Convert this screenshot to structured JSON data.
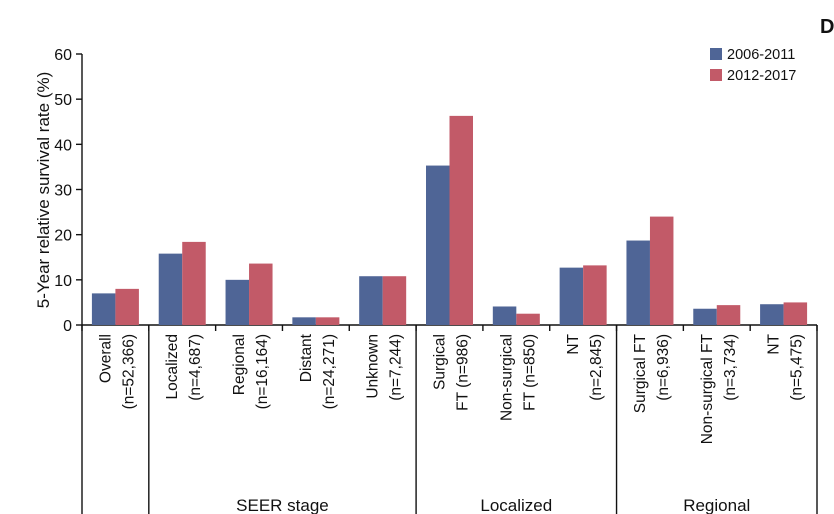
{
  "panel_letter": "D",
  "colors": {
    "series_0": "#4f6596",
    "series_1": "#c25a68"
  },
  "chart_data": {
    "type": "bar",
    "ylabel": "5-Year relative survival rate (%)",
    "ylim": [
      0,
      60
    ],
    "yticks": [
      0,
      10,
      20,
      30,
      40,
      50,
      60
    ],
    "legend_position": "top-right",
    "categories": [
      {
        "line1": "Overall",
        "line2": "(n=52,366)"
      },
      {
        "line1": "Localized",
        "line2": "(n=4,687)"
      },
      {
        "line1": "Regional",
        "line2": "(n=16,164)"
      },
      {
        "line1": "Distant",
        "line2": "(n=24,271)"
      },
      {
        "line1": "Unknown",
        "line2": "(n=7,244)"
      },
      {
        "line1": "Surgical",
        "line2": "FT (n=986)"
      },
      {
        "line1": "Non-surgical",
        "line2": "FT (n=850)"
      },
      {
        "line1": "NT",
        "line2": "(n=2,845)"
      },
      {
        "line1": "Surgical FT",
        "line2": "(n=6,936)"
      },
      {
        "line1": "Non-surgical FT",
        "line2": "(n=3,734)"
      },
      {
        "line1": "NT",
        "line2": "(n=5,475)"
      }
    ],
    "groups": [
      {
        "label": "",
        "start": 0,
        "end": 0
      },
      {
        "label": "SEER stage",
        "start": 1,
        "end": 4
      },
      {
        "label": "Localized",
        "start": 5,
        "end": 7
      },
      {
        "label": "Regional",
        "start": 8,
        "end": 10
      }
    ],
    "series": [
      {
        "name": "2006-2011",
        "values": [
          7.0,
          15.8,
          10.0,
          1.7,
          10.8,
          35.3,
          4.1,
          12.7,
          18.7,
          3.6,
          4.6
        ]
      },
      {
        "name": "2012-2017",
        "values": [
          8.0,
          18.4,
          13.6,
          1.7,
          10.8,
          46.3,
          2.5,
          13.2,
          24.0,
          4.4,
          5.0
        ]
      }
    ]
  }
}
